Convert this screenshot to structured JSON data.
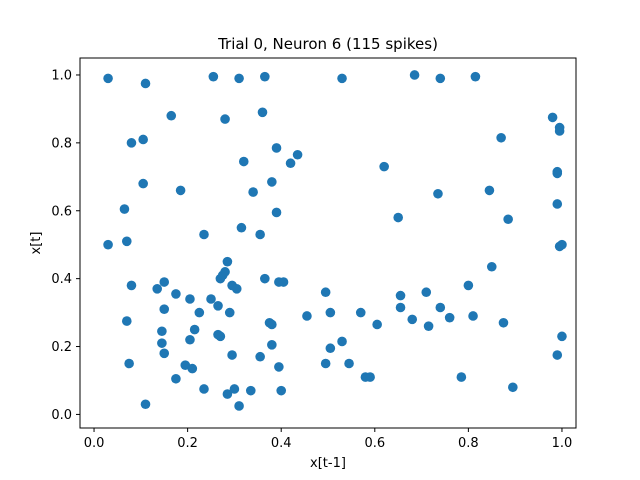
{
  "chart_data": {
    "type": "scatter",
    "title": "Trial 0, Neuron 6 (115 spikes)",
    "xlabel": "x[t-1]",
    "ylabel": "x[t]",
    "xlim": [
      -0.03,
      1.03
    ],
    "ylim": [
      -0.04,
      1.05
    ],
    "x_ticks": [
      "0.0",
      "0.2",
      "0.4",
      "0.6",
      "0.8",
      "1.0"
    ],
    "y_ticks": [
      "0.0",
      "0.2",
      "0.4",
      "0.6",
      "0.8",
      "1.0"
    ],
    "grid": false,
    "marker_color": "#1f77b4",
    "points": [
      [
        0.03,
        0.99
      ],
      [
        0.11,
        0.975
      ],
      [
        0.255,
        0.995
      ],
      [
        0.31,
        0.99
      ],
      [
        0.365,
        0.995
      ],
      [
        0.53,
        0.99
      ],
      [
        0.685,
        1.0
      ],
      [
        0.74,
        0.99
      ],
      [
        0.815,
        0.995
      ],
      [
        0.165,
        0.88
      ],
      [
        0.28,
        0.87
      ],
      [
        0.36,
        0.89
      ],
      [
        0.08,
        0.8
      ],
      [
        0.105,
        0.81
      ],
      [
        0.32,
        0.745
      ],
      [
        0.39,
        0.785
      ],
      [
        0.42,
        0.74
      ],
      [
        0.435,
        0.765
      ],
      [
        0.98,
        0.875
      ],
      [
        0.995,
        0.845
      ],
      [
        0.995,
        0.835
      ],
      [
        0.87,
        0.815
      ],
      [
        0.105,
        0.68
      ],
      [
        0.185,
        0.66
      ],
      [
        0.34,
        0.655
      ],
      [
        0.38,
        0.685
      ],
      [
        0.62,
        0.73
      ],
      [
        0.735,
        0.65
      ],
      [
        0.845,
        0.66
      ],
      [
        0.99,
        0.715
      ],
      [
        0.99,
        0.71
      ],
      [
        0.065,
        0.605
      ],
      [
        0.39,
        0.595
      ],
      [
        0.65,
        0.58
      ],
      [
        0.885,
        0.575
      ],
      [
        0.99,
        0.62
      ],
      [
        0.03,
        0.5
      ],
      [
        0.07,
        0.51
      ],
      [
        0.235,
        0.53
      ],
      [
        0.315,
        0.55
      ],
      [
        0.355,
        0.53
      ],
      [
        0.995,
        0.495
      ],
      [
        1.0,
        0.5
      ],
      [
        0.08,
        0.38
      ],
      [
        0.135,
        0.37
      ],
      [
        0.15,
        0.39
      ],
      [
        0.175,
        0.355
      ],
      [
        0.205,
        0.34
      ],
      [
        0.25,
        0.34
      ],
      [
        0.265,
        0.32
      ],
      [
        0.27,
        0.4
      ],
      [
        0.275,
        0.41
      ],
      [
        0.28,
        0.42
      ],
      [
        0.285,
        0.45
      ],
      [
        0.295,
        0.38
      ],
      [
        0.305,
        0.37
      ],
      [
        0.365,
        0.4
      ],
      [
        0.395,
        0.39
      ],
      [
        0.405,
        0.39
      ],
      [
        0.85,
        0.435
      ],
      [
        0.8,
        0.38
      ],
      [
        0.495,
        0.36
      ],
      [
        0.655,
        0.35
      ],
      [
        0.71,
        0.36
      ],
      [
        0.15,
        0.31
      ],
      [
        0.225,
        0.3
      ],
      [
        0.29,
        0.3
      ],
      [
        0.07,
        0.275
      ],
      [
        0.145,
        0.245
      ],
      [
        0.215,
        0.25
      ],
      [
        0.145,
        0.21
      ],
      [
        0.205,
        0.22
      ],
      [
        0.265,
        0.235
      ],
      [
        0.27,
        0.23
      ],
      [
        0.375,
        0.27
      ],
      [
        0.38,
        0.265
      ],
      [
        0.455,
        0.29
      ],
      [
        0.505,
        0.3
      ],
      [
        0.57,
        0.3
      ],
      [
        0.605,
        0.265
      ],
      [
        0.655,
        0.315
      ],
      [
        0.68,
        0.28
      ],
      [
        0.715,
        0.26
      ],
      [
        0.74,
        0.315
      ],
      [
        0.76,
        0.285
      ],
      [
        0.81,
        0.29
      ],
      [
        0.875,
        0.27
      ],
      [
        1.0,
        0.23
      ],
      [
        0.15,
        0.18
      ],
      [
        0.38,
        0.205
      ],
      [
        0.295,
        0.175
      ],
      [
        0.355,
        0.17
      ],
      [
        0.505,
        0.195
      ],
      [
        0.53,
        0.215
      ],
      [
        0.99,
        0.175
      ],
      [
        0.075,
        0.15
      ],
      [
        0.195,
        0.145
      ],
      [
        0.21,
        0.135
      ],
      [
        0.395,
        0.14
      ],
      [
        0.495,
        0.15
      ],
      [
        0.545,
        0.15
      ],
      [
        0.175,
        0.105
      ],
      [
        0.58,
        0.11
      ],
      [
        0.59,
        0.11
      ],
      [
        0.785,
        0.11
      ],
      [
        0.235,
        0.075
      ],
      [
        0.285,
        0.06
      ],
      [
        0.3,
        0.075
      ],
      [
        0.335,
        0.07
      ],
      [
        0.4,
        0.07
      ],
      [
        0.895,
        0.08
      ],
      [
        0.11,
        0.03
      ],
      [
        0.31,
        0.025
      ]
    ]
  }
}
